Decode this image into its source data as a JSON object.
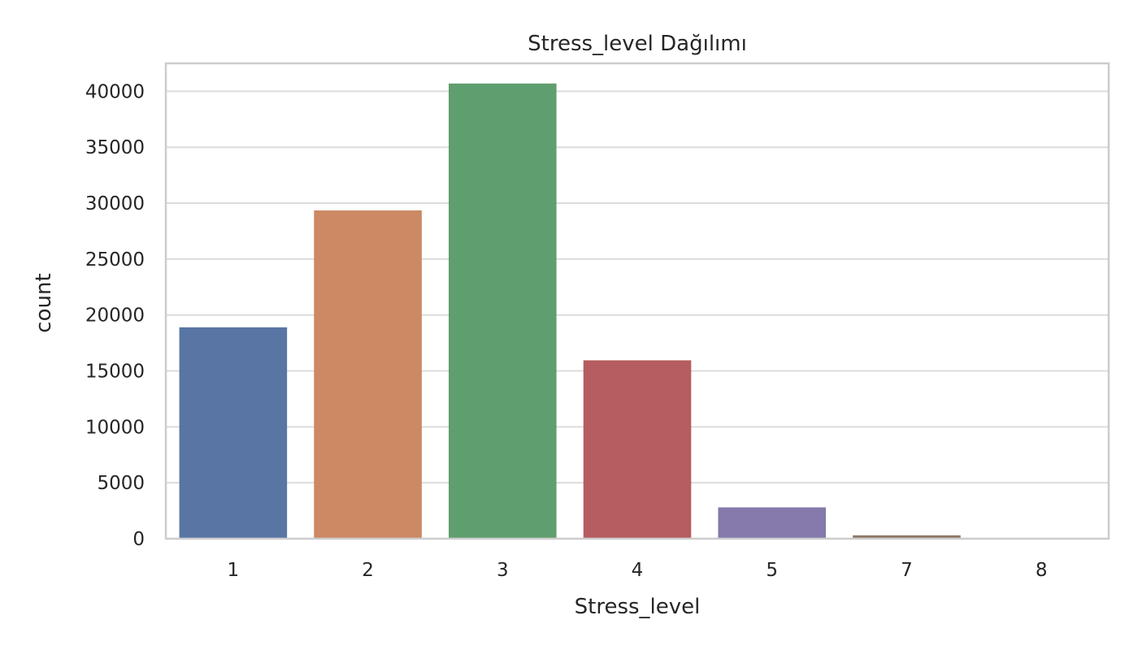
{
  "chart_data": {
    "type": "bar",
    "title": "Stress_level Dağılımı",
    "xlabel": "Stress_level",
    "ylabel": "count",
    "categories": [
      "1",
      "2",
      "3",
      "4",
      "5",
      "7",
      "8"
    ],
    "values": [
      18900,
      29350,
      40700,
      15950,
      2800,
      300,
      30
    ],
    "colors": [
      "#5875a4",
      "#cc8963",
      "#5f9e6e",
      "#b55d60",
      "#857aab",
      "#8d7866",
      "#d095bf"
    ],
    "ylim": [
      0,
      42500
    ],
    "yticks": [
      0,
      5000,
      10000,
      15000,
      20000,
      25000,
      30000,
      35000,
      40000
    ],
    "grid": true,
    "legend": "none"
  }
}
